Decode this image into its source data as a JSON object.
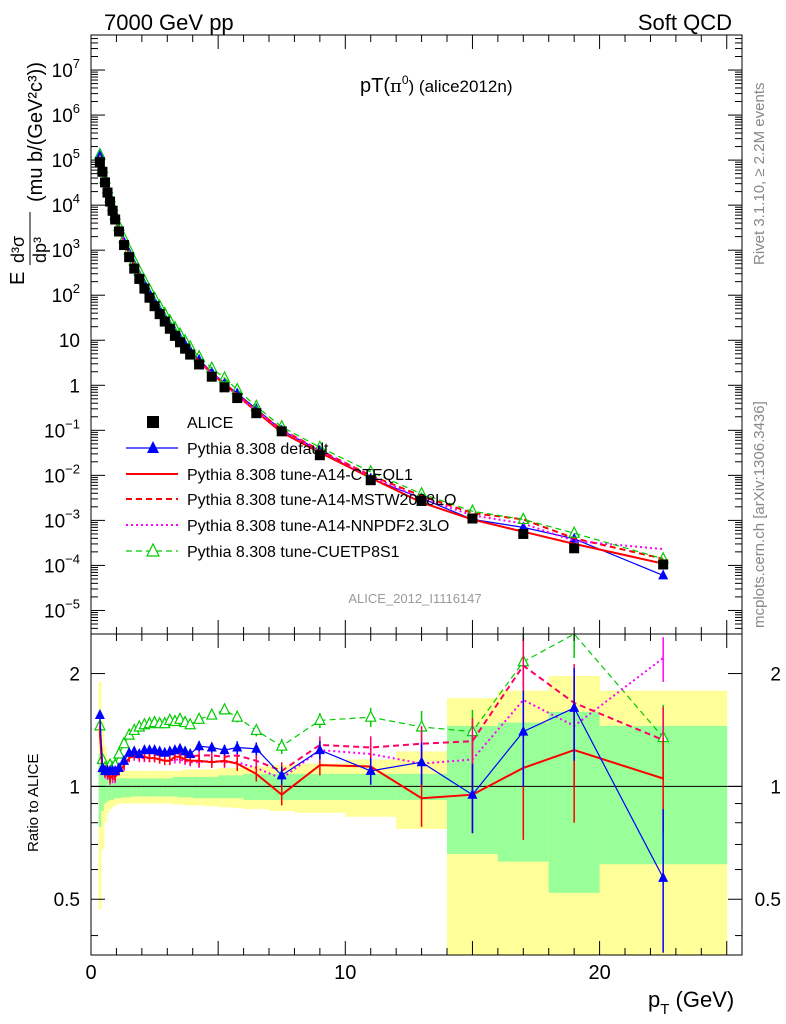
{
  "header": {
    "left": "7000 GeV pp",
    "right": "Soft QCD"
  },
  "side_text": {
    "top": "Rivet 3.1.10, ≥ 2.2M events",
    "bottom": "mcplots.cern.ch [arXiv:1306.3436]"
  },
  "chart_data": [
    {
      "type": "line",
      "title": "pT(π⁰) (alice2012n)",
      "title_main": "pT(",
      "title_sym": "π",
      "title_sup": "0",
      "title_tail": ") (alice2012n)",
      "watermark": "ALICE_2012_I1116147",
      "ylabel_parts": {
        "e": "E",
        "num": "d³σ",
        "den": "dp³",
        "units": "(mu b/(GeV²c³))"
      },
      "log_y": true,
      "ylim": [
        3e-06,
        60000000.0
      ],
      "xlim": [
        0,
        25.6
      ],
      "y_ticks": [
        {
          "v": 1e-05,
          "b": "10",
          "e": "−5"
        },
        {
          "v": 0.0001,
          "b": "10",
          "e": "−4"
        },
        {
          "v": 0.001,
          "b": "10",
          "e": "−3"
        },
        {
          "v": 0.01,
          "b": "10",
          "e": "−2"
        },
        {
          "v": 0.1,
          "b": "10",
          "e": "−1"
        },
        {
          "v": 1,
          "b": "1",
          "e": ""
        },
        {
          "v": 10,
          "b": "10",
          "e": ""
        },
        {
          "v": 100,
          "b": "10",
          "e": "2"
        },
        {
          "v": 1000,
          "b": "10",
          "e": "3"
        },
        {
          "v": 10000,
          "b": "10",
          "e": "4"
        },
        {
          "v": 100000,
          "b": "10",
          "e": "5"
        },
        {
          "v": 1000000,
          "b": "10",
          "e": "6"
        },
        {
          "v": 10000000,
          "b": "10",
          "e": "7"
        }
      ],
      "x": [
        0.35,
        0.45,
        0.55,
        0.65,
        0.75,
        0.85,
        0.95,
        1.1,
        1.3,
        1.5,
        1.7,
        1.9,
        2.1,
        2.3,
        2.5,
        2.7,
        2.9,
        3.1,
        3.3,
        3.5,
        3.7,
        3.9,
        4.25,
        4.75,
        5.25,
        5.75,
        6.5,
        7.5,
        9.0,
        11.0,
        13.0,
        15.0,
        17.0,
        19.0,
        22.5
      ],
      "legend": [
        "ALICE",
        "Pythia 8.308 default",
        "Pythia 8.308 tune-A14-CTEQL1",
        "Pythia 8.308 tune-A14-MSTW2008LO",
        "Pythia 8.308 tune-A14-NNPDF2.3LO",
        "Pythia 8.308 tune-CUETP8S1"
      ],
      "series": [
        {
          "name": "ALICE",
          "color": "#000000",
          "marker": "square",
          "values": [
            90000,
            55000,
            32000,
            19000,
            12000,
            7500,
            4800,
            2600,
            1300,
            700,
            390,
            230,
            140,
            88,
            57,
            38,
            26,
            18,
            12.5,
            9.0,
            6.5,
            4.8,
            2.9,
            1.55,
            0.9,
            0.52,
            0.24,
            0.095,
            0.028,
            0.0078,
            0.0027,
            0.0011,
            0.0005,
            0.00024,
            0.000105
          ]
        },
        {
          "name": "Pythia 8.308 default",
          "color": "#0000ff",
          "marker": "triangle",
          "values": [
            140000,
            62000,
            35000,
            21000,
            13000,
            8200,
            5200,
            2900,
            1500,
            860,
            480,
            280,
            175,
            110,
            71,
            47,
            32,
            22,
            15.5,
            11.3,
            8.0,
            5.9,
            3.7,
            1.95,
            1.12,
            0.66,
            0.3,
            0.1,
            0.035,
            0.0085,
            0.0031,
            0.00105,
            0.0007,
            0.00039,
            6e-05
          ]
        },
        {
          "name": "Pythia 8.308 tune-A14-CTEQL1",
          "color": "#ff0000",
          "marker": "none",
          "values": [
            125000,
            61000,
            35000,
            20500,
            12600,
            8000,
            5100,
            2850,
            1480,
            830,
            470,
            275,
            168,
            105,
            68,
            45,
            30.5,
            21,
            15,
            10.8,
            7.7,
            5.6,
            3.4,
            1.8,
            1.05,
            0.6,
            0.26,
            0.09,
            0.032,
            0.0088,
            0.0025,
            0.00104,
            0.00056,
            0.0003,
            0.00011
          ]
        },
        {
          "name": "Pythia 8.308 tune-A14-MSTW2008LO",
          "color": "#ff0000",
          "marker": "none",
          "values": [
            130000,
            62000,
            35500,
            21000,
            13000,
            8300,
            5250,
            2900,
            1500,
            860,
            485,
            282,
            172,
            108,
            70,
            46,
            31.5,
            22,
            15.3,
            11.0,
            7.9,
            5.8,
            3.5,
            1.88,
            1.08,
            0.63,
            0.28,
            0.105,
            0.036,
            0.0099,
            0.0035,
            0.00145,
            0.00105,
            0.0004,
            0.00014
          ]
        },
        {
          "name": "Pythia 8.308 tune-A14-NNPDF2.3LO",
          "color": "#ff00ff",
          "marker": "none",
          "values": [
            125000,
            60000,
            34500,
            20300,
            12500,
            7900,
            5050,
            2850,
            1470,
            830,
            470,
            274,
            167,
            105,
            68,
            45,
            30.5,
            21,
            14.8,
            10.6,
            7.6,
            5.6,
            3.35,
            1.82,
            1.05,
            0.6,
            0.27,
            0.1,
            0.035,
            0.0095,
            0.0031,
            0.0013,
            0.00085,
            0.00035,
            0.00023
          ]
        },
        {
          "name": "Pythia 8.308 tune-CUETP8S1",
          "color": "#00cc00",
          "marker": "open-triangle",
          "values": [
            130000,
            65000,
            38000,
            23000,
            14500,
            9300,
            6000,
            3400,
            1800,
            1010,
            570,
            340,
            210,
            132,
            86,
            57,
            39,
            27,
            19,
            13.7,
            9.7,
            7.1,
            4.3,
            2.4,
            1.45,
            0.8,
            0.34,
            0.12,
            0.042,
            0.012,
            0.0039,
            0.0016,
            0.00105,
            0.00052,
            0.00014
          ]
        }
      ]
    },
    {
      "type": "line",
      "ylabel": "Ratio to ALICE",
      "xlabel_main": "p",
      "xlabel_sub": "T",
      "xlabel_tail": " (GeV)",
      "log_y": true,
      "ylim": [
        0.355,
        2.55
      ],
      "xlim": [
        0,
        25.6
      ],
      "x_ticks": [
        "0",
        "10",
        "20"
      ],
      "x_tick_values": [
        0,
        10,
        20
      ],
      "y_ticks_left": [
        "0.5",
        "1",
        "2"
      ],
      "y_ticks_right": [
        "0.5",
        "1",
        "2"
      ],
      "y_tick_values": [
        0.5,
        1,
        2
      ],
      "bands": {
        "x_edges": [
          0.3,
          0.4,
          0.5,
          0.6,
          0.7,
          0.8,
          0.9,
          1.0,
          1.2,
          1.4,
          1.6,
          1.8,
          2.0,
          2.2,
          2.4,
          2.6,
          2.8,
          3.0,
          3.2,
          3.4,
          3.6,
          3.8,
          4.0,
          4.5,
          5.0,
          5.5,
          6.0,
          7.0,
          8.0,
          10.0,
          12.0,
          14.0,
          16.0,
          18.0,
          20.0,
          25.0
        ],
        "stat_lo": [
          0.78,
          0.86,
          0.9,
          0.91,
          0.92,
          0.92,
          0.93,
          0.93,
          0.935,
          0.935,
          0.94,
          0.94,
          0.94,
          0.94,
          0.94,
          0.94,
          0.94,
          0.94,
          0.94,
          0.935,
          0.935,
          0.935,
          0.93,
          0.93,
          0.93,
          0.93,
          0.92,
          0.92,
          0.92,
          0.92,
          0.92,
          0.66,
          0.63,
          0.52,
          0.62
        ],
        "stat_hi": [
          1.22,
          1.12,
          1.08,
          1.07,
          1.06,
          1.05,
          1.05,
          1.05,
          1.05,
          1.05,
          1.05,
          1.05,
          1.05,
          1.05,
          1.05,
          1.05,
          1.05,
          1.05,
          1.06,
          1.06,
          1.06,
          1.06,
          1.06,
          1.06,
          1.07,
          1.07,
          1.08,
          1.08,
          1.08,
          1.08,
          1.08,
          1.45,
          1.48,
          1.58,
          1.45
        ],
        "tot_lo": [
          0.47,
          0.68,
          0.8,
          0.85,
          0.87,
          0.88,
          0.89,
          0.9,
          0.9,
          0.9,
          0.9,
          0.9,
          0.9,
          0.9,
          0.9,
          0.9,
          0.9,
          0.9,
          0.895,
          0.895,
          0.89,
          0.89,
          0.89,
          0.885,
          0.88,
          0.875,
          0.87,
          0.86,
          0.85,
          0.83,
          0.77,
          0.355,
          0.355,
          0.355,
          0.355
        ],
        "tot_hi": [
          1.9,
          1.5,
          1.28,
          1.18,
          1.14,
          1.12,
          1.11,
          1.1,
          1.1,
          1.1,
          1.1,
          1.1,
          1.1,
          1.1,
          1.1,
          1.1,
          1.1,
          1.1,
          1.1,
          1.1,
          1.11,
          1.11,
          1.11,
          1.11,
          1.12,
          1.12,
          1.13,
          1.14,
          1.15,
          1.18,
          1.24,
          1.72,
          1.8,
          1.97,
          1.8
        ]
      },
      "series": [
        {
          "name": "Pythia 8.308 default",
          "color": "#0000ff",
          "values": [
            1.55,
            1.12,
            1.1,
            1.1,
            1.1,
            1.1,
            1.1,
            1.12,
            1.17,
            1.23,
            1.24,
            1.22,
            1.25,
            1.25,
            1.25,
            1.24,
            1.23,
            1.24,
            1.25,
            1.26,
            1.24,
            1.22,
            1.28,
            1.27,
            1.25,
            1.27,
            1.26,
            1.07,
            1.25,
            1.1,
            1.16,
            0.95,
            1.4,
            1.62,
            0.57
          ],
          "errors": [
            0.04,
            0.03,
            0.03,
            0.03,
            0.03,
            0.03,
            0.03,
            0.03,
            0.03,
            0.03,
            0.03,
            0.03,
            0.03,
            0.03,
            0.03,
            0.03,
            0.03,
            0.03,
            0.03,
            0.03,
            0.03,
            0.03,
            0.04,
            0.04,
            0.04,
            0.05,
            0.05,
            0.06,
            0.07,
            0.09,
            0.15,
            0.2,
            0.4,
            0.45,
            0.3
          ]
        },
        {
          "name": "Pythia 8.308 tune-A14-CTEQL1",
          "color": "#ff0000",
          "values": [
            1.39,
            1.11,
            1.09,
            1.08,
            1.05,
            1.07,
            1.06,
            1.1,
            1.14,
            1.19,
            1.21,
            1.2,
            1.2,
            1.19,
            1.19,
            1.18,
            1.17,
            1.17,
            1.2,
            1.2,
            1.18,
            1.17,
            1.17,
            1.16,
            1.17,
            1.15,
            1.08,
            0.95,
            1.14,
            1.13,
            0.93,
            0.95,
            1.12,
            1.25,
            1.05
          ],
          "errors": [
            0.04,
            0.03,
            0.03,
            0.03,
            0.03,
            0.03,
            0.03,
            0.03,
            0.03,
            0.03,
            0.03,
            0.03,
            0.03,
            0.03,
            0.03,
            0.03,
            0.03,
            0.03,
            0.03,
            0.03,
            0.03,
            0.03,
            0.04,
            0.04,
            0.04,
            0.05,
            0.05,
            0.06,
            0.07,
            0.09,
            0.15,
            0.2,
            0.4,
            0.45,
            0.3
          ]
        },
        {
          "name": "Pythia 8.308 tune-A14-MSTW2008LO",
          "color": "#ff0066",
          "values": [
            1.45,
            1.13,
            1.11,
            1.11,
            1.08,
            1.1,
            1.09,
            1.12,
            1.16,
            1.23,
            1.24,
            1.23,
            1.23,
            1.23,
            1.22,
            1.21,
            1.21,
            1.22,
            1.23,
            1.22,
            1.21,
            1.2,
            1.21,
            1.21,
            1.2,
            1.21,
            1.17,
            1.1,
            1.29,
            1.27,
            1.3,
            1.32,
            2.1,
            1.67,
            1.33
          ],
          "errors": [
            0.04,
            0.03,
            0.03,
            0.03,
            0.03,
            0.03,
            0.03,
            0.03,
            0.03,
            0.03,
            0.03,
            0.03,
            0.03,
            0.03,
            0.03,
            0.03,
            0.03,
            0.03,
            0.03,
            0.03,
            0.03,
            0.03,
            0.04,
            0.04,
            0.04,
            0.05,
            0.05,
            0.06,
            0.07,
            0.09,
            0.15,
            0.2,
            0.4,
            0.45,
            0.3
          ]
        },
        {
          "name": "Pythia 8.308 tune-A14-NNPDF2.3LO",
          "color": "#ff00ff",
          "values": [
            1.4,
            1.1,
            1.08,
            1.07,
            1.04,
            1.05,
            1.05,
            1.1,
            1.13,
            1.19,
            1.2,
            1.19,
            1.19,
            1.19,
            1.19,
            1.18,
            1.17,
            1.17,
            1.18,
            1.18,
            1.17,
            1.16,
            1.16,
            1.17,
            1.16,
            1.16,
            1.12,
            1.05,
            1.25,
            1.22,
            1.15,
            1.18,
            1.7,
            1.45,
            2.2
          ],
          "errors": [
            0.04,
            0.03,
            0.03,
            0.03,
            0.03,
            0.03,
            0.03,
            0.03,
            0.03,
            0.03,
            0.03,
            0.03,
            0.03,
            0.03,
            0.03,
            0.03,
            0.03,
            0.03,
            0.03,
            0.03,
            0.03,
            0.03,
            0.04,
            0.04,
            0.04,
            0.05,
            0.05,
            0.06,
            0.07,
            0.09,
            0.15,
            0.2,
            0.4,
            0.45,
            0.3
          ]
        },
        {
          "name": "Pythia 8.308 tune-CUETP8S1",
          "color": "#00cc00",
          "values": [
            1.45,
            1.18,
            1.12,
            1.11,
            1.14,
            1.12,
            1.14,
            1.22,
            1.3,
            1.37,
            1.41,
            1.44,
            1.46,
            1.47,
            1.48,
            1.47,
            1.47,
            1.5,
            1.49,
            1.51,
            1.48,
            1.46,
            1.51,
            1.55,
            1.6,
            1.53,
            1.41,
            1.28,
            1.5,
            1.53,
            1.44,
            1.4,
            2.15,
            2.65,
            1.35
          ],
          "errors": [
            0.04,
            0.03,
            0.03,
            0.03,
            0.03,
            0.03,
            0.03,
            0.03,
            0.03,
            0.03,
            0.03,
            0.03,
            0.03,
            0.03,
            0.03,
            0.03,
            0.03,
            0.03,
            0.03,
            0.03,
            0.03,
            0.03,
            0.04,
            0.04,
            0.04,
            0.05,
            0.05,
            0.06,
            0.07,
            0.09,
            0.15,
            0.2,
            0.4,
            0.45,
            0.3
          ]
        }
      ],
      "band_colors": {
        "stat": "#99ff99",
        "total": "#ffff99"
      }
    }
  ]
}
